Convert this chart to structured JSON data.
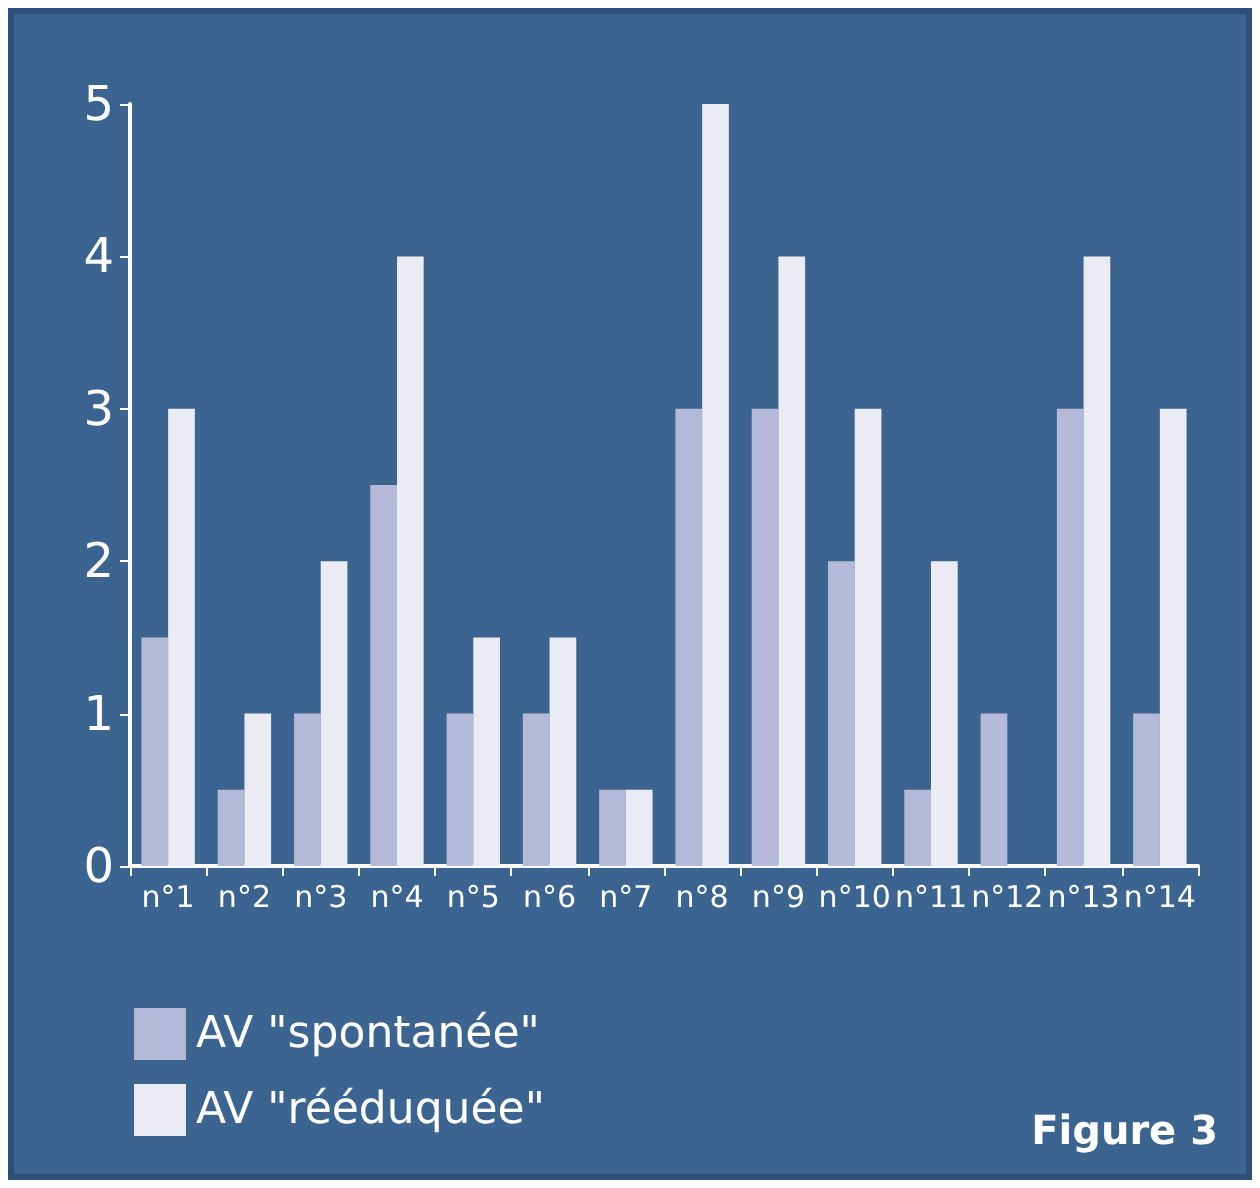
{
  "chart_data": {
    "type": "bar",
    "categories": [
      "n°1",
      "n°2",
      "n°3",
      "n°4",
      "n°5",
      "n°6",
      "n°7",
      "n°8",
      "n°9",
      "n°10",
      "n°11",
      "n°12",
      "n°13",
      "n°14"
    ],
    "series": [
      {
        "name": "AV \"spontanée\"",
        "color": "#b3b9d6",
        "values": [
          1.5,
          0.5,
          1,
          2.5,
          1,
          1,
          0.5,
          3,
          3,
          2,
          0.5,
          1,
          3,
          1
        ]
      },
      {
        "name": "AV \"rééduquée\"",
        "color": "#ebebf3",
        "values": [
          3,
          1,
          2,
          4,
          1.5,
          1.5,
          0.5,
          5,
          4,
          3,
          2,
          0,
          4,
          3
        ]
      }
    ],
    "ylim": [
      0,
      5
    ],
    "yticks": [
      0,
      1,
      2,
      3,
      4,
      5
    ],
    "grid": false,
    "legend": "bottom left",
    "annotations": [
      "Figure 3"
    ]
  }
}
